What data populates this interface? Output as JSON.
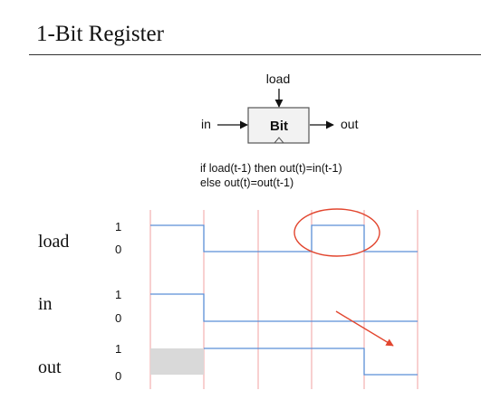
{
  "title": "1-Bit Register",
  "chip": {
    "name": "Bit",
    "input_label": "in",
    "output_label": "out",
    "control_label": "load"
  },
  "formula": {
    "line1": "if load(t-1) then out(t)=in(t-1)",
    "line2": "else out(t)=out(t-1)"
  },
  "timing": {
    "cycles": 5,
    "signals": [
      {
        "name": "load",
        "high_label": "1",
        "low_label": "0",
        "levels": [
          1,
          0,
          0,
          1,
          0
        ]
      },
      {
        "name": "in",
        "high_label": "1",
        "low_label": "0",
        "levels": [
          1,
          0,
          0,
          0,
          0
        ]
      },
      {
        "name": "out",
        "high_label": "1",
        "low_label": "0",
        "levels": [
          null,
          1,
          1,
          1,
          0
        ]
      }
    ],
    "annotations": {
      "highlight": "load pulse in cycle 4",
      "arrow": "points to out falling in cycle 5"
    }
  },
  "colors": {
    "wave": "#5b8fd6",
    "clock_line": "#f0a0a0",
    "annotation": "#e2462f",
    "unknown_fill": "#d9d9d9",
    "chip_fill": "#f2f2f2"
  }
}
